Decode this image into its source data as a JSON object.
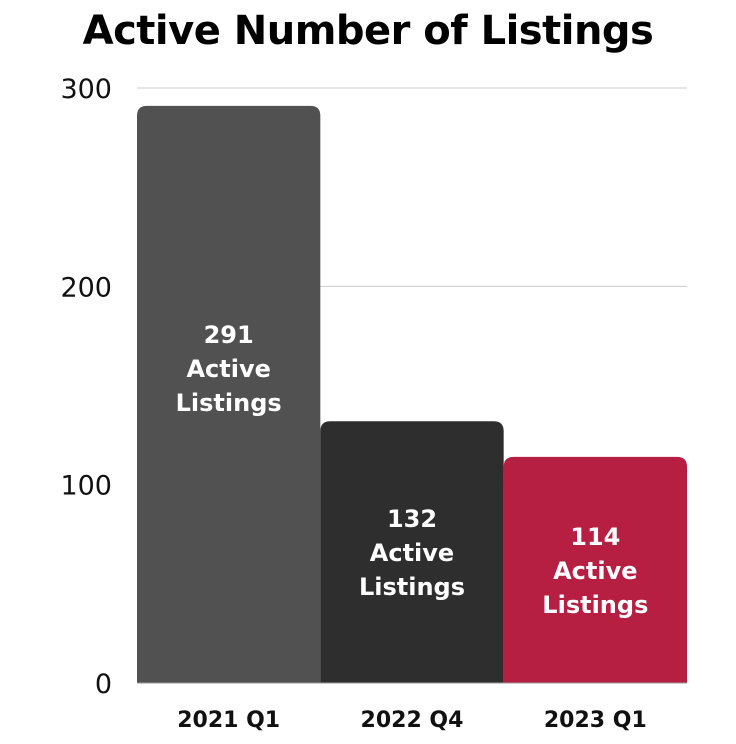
{
  "chart_data": {
    "type": "bar",
    "title": "Active Number of Listings",
    "xlabel": "",
    "ylabel": "",
    "categories": [
      "2021 Q1",
      "2022 Q4",
      "2023 Q1"
    ],
    "values": [
      291,
      132,
      114
    ],
    "data_labels": [
      [
        "291",
        "Active",
        "Listings"
      ],
      [
        "132",
        "Active",
        "Listings"
      ],
      [
        "114",
        "Active",
        "Listings"
      ]
    ],
    "colors": [
      "#515151",
      "#2e2e2e",
      "#b61e42"
    ],
    "ylim": [
      0,
      300
    ],
    "yticks": [
      0,
      100,
      200,
      300
    ],
    "grid": true,
    "legend": "none"
  }
}
